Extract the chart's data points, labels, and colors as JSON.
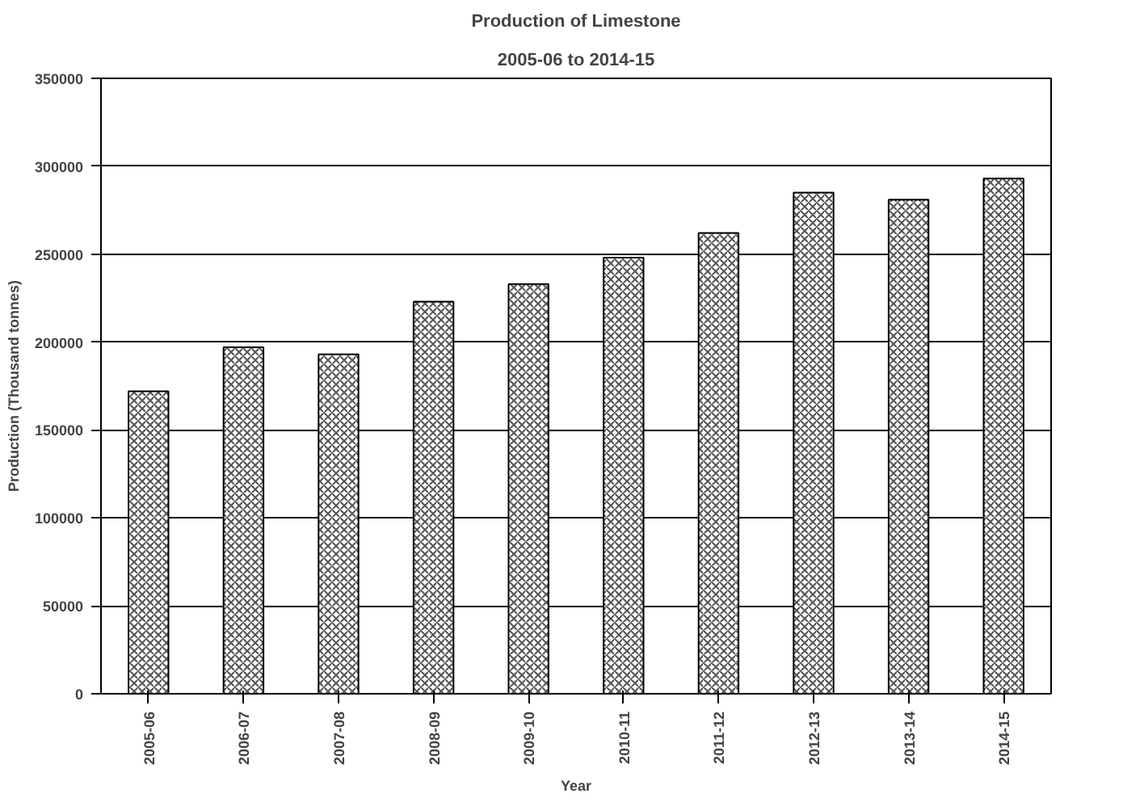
{
  "chart_data": {
    "type": "bar",
    "title": "Production of Limestone",
    "subtitle": "2005-06 to 2014-15",
    "xlabel": "Year",
    "ylabel": "Production (Thousand tonnes)",
    "categories": [
      "2005-06",
      "2006-07",
      "2007-08",
      "2008-09",
      "2009-10",
      "2010-11",
      "2011-12",
      "2012-13",
      "2013-14",
      "2014-15"
    ],
    "values": [
      172000,
      197000,
      193000,
      223000,
      233000,
      248000,
      262000,
      285000,
      281000,
      293000
    ],
    "color": "#ffffff",
    "ylim": [
      0,
      350000
    ],
    "yticks": [
      0,
      50000,
      100000,
      150000,
      200000,
      250000,
      300000,
      350000
    ],
    "grid": "y"
  }
}
